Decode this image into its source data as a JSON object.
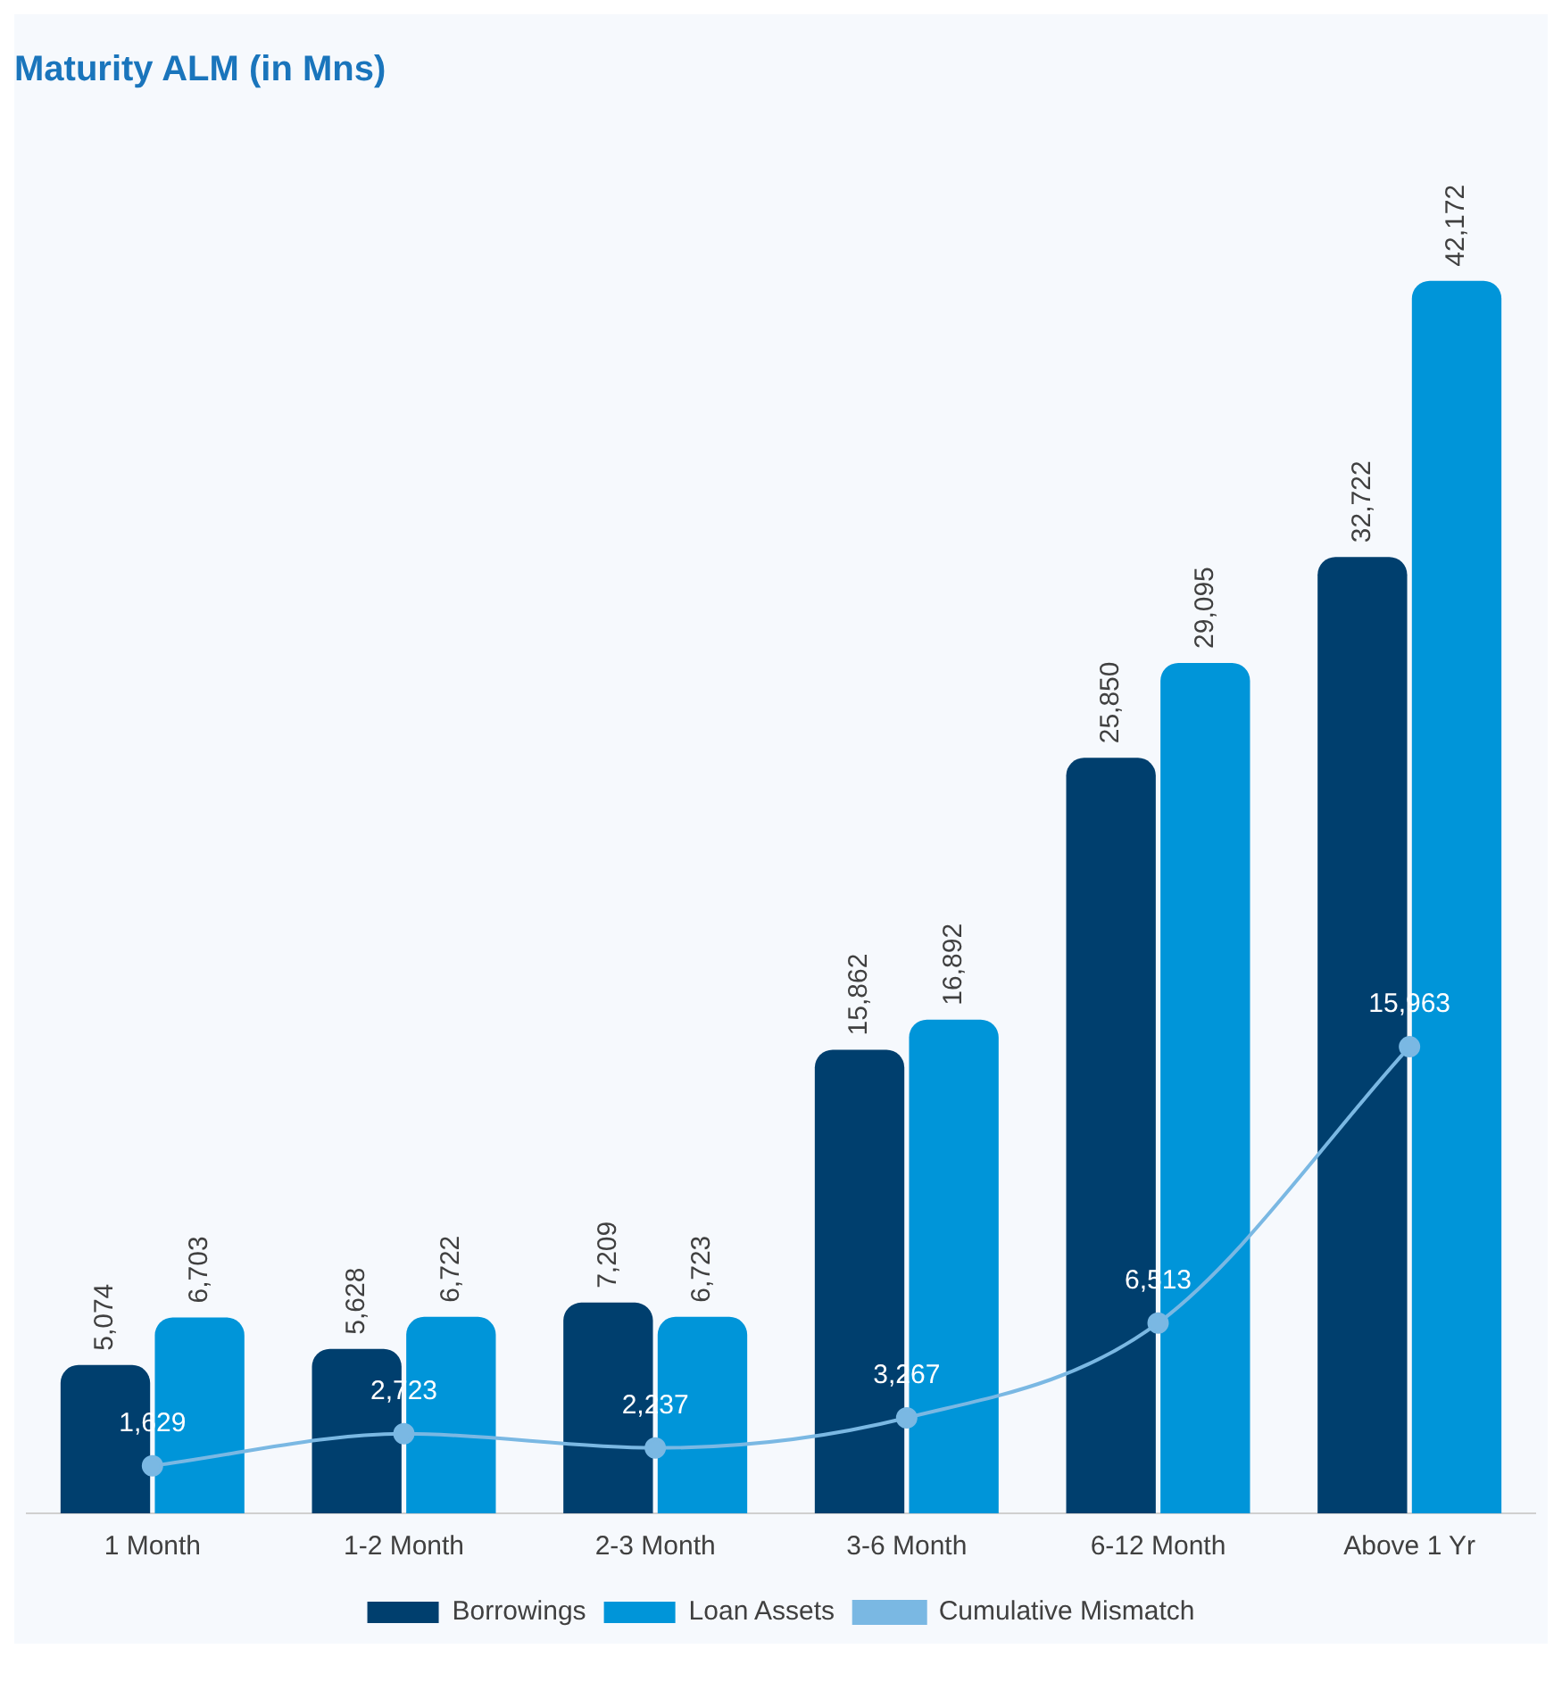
{
  "chart_data": {
    "type": "bar",
    "title": "Maturity ALM (in Mns)",
    "categories": [
      "1 Month",
      "1-2 Month",
      "2-3 Month",
      "3-6 Month",
      "6-12 Month",
      "Above 1 Yr"
    ],
    "series": [
      {
        "name": "Borrowings",
        "color": "#003f6e",
        "values": [
          5074,
          5628,
          7209,
          15862,
          25850,
          32722
        ],
        "value_labels": [
          "5,074",
          "5,628",
          "7,209",
          "15,862",
          "25,850",
          "32,722"
        ]
      },
      {
        "name": "Loan Assets",
        "color": "#0095d9",
        "values": [
          6703,
          6722,
          6723,
          16892,
          29095,
          42172
        ],
        "value_labels": [
          "6,703",
          "6,722",
          "6,723",
          "16,892",
          "29,095",
          "42,172"
        ]
      },
      {
        "name": "Cumulative Mismatch",
        "type": "line",
        "color": "#7ab8e3",
        "marker": "circle",
        "values": [
          1629,
          2723,
          2237,
          3267,
          6513,
          15963
        ],
        "value_labels": [
          "1,629",
          "2,723",
          "2,237",
          "3,267",
          "6,513",
          "15,963"
        ]
      }
    ],
    "grid": false,
    "legend": "bottom"
  }
}
